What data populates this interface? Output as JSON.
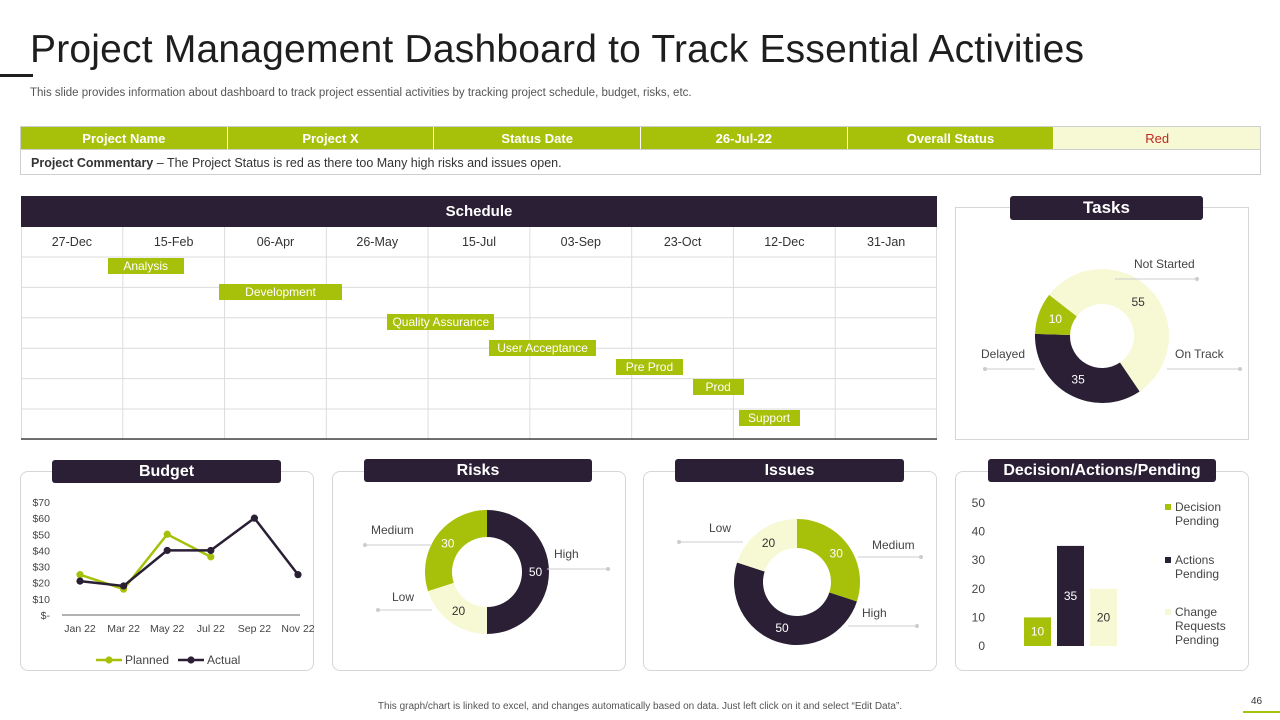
{
  "page": {
    "title": "Project Management Dashboard to Track Essential Activities",
    "subtitle": "This slide provides information about dashboard to track project essential activities by tracking project schedule, budget, risks, etc.",
    "footer": "This graph/chart is linked to excel, and changes automatically based on data. Just left click on it and select “Edit Data”.",
    "page_number": "46"
  },
  "colors": {
    "green": "#a7c00a",
    "dark": "#2a1f35",
    "pale": "#f6f9d4",
    "red": "#c0281e"
  },
  "status": {
    "cells": [
      "Project Name",
      "Project X",
      "Status Date",
      "26-Jul-22",
      "Overall Status",
      "Red"
    ],
    "commentary_label": "Project Commentary",
    "commentary_text": " – The Project Status is red as there too Many high risks and issues open."
  },
  "schedule": {
    "title": "Schedule",
    "dates": [
      "27-Dec",
      "15-Feb",
      "06-Apr",
      "26-May",
      "15-Jul",
      "03-Sep",
      "23-Oct",
      "12-Dec",
      "31-Jan"
    ],
    "tasks": [
      {
        "name": "Analysis",
        "start": 0.85,
        "end": 1.6,
        "row": 0
      },
      {
        "name": "Development",
        "start": 1.95,
        "end": 3.15,
        "row": 1
      },
      {
        "name": "Quality Assurance",
        "start": 3.6,
        "end": 4.65,
        "row": 2
      },
      {
        "name": "User Acceptance",
        "start": 4.6,
        "end": 5.65,
        "row": 3
      },
      {
        "name": "Pre Prod",
        "start": 5.85,
        "end": 6.5,
        "row": 4
      },
      {
        "name": "Prod",
        "start": 6.6,
        "end": 7.1,
        "row": 5
      },
      {
        "name": "Support",
        "start": 7.05,
        "end": 7.65,
        "row": 6
      }
    ]
  },
  "chart_data": [
    {
      "id": "tasks",
      "type": "pie",
      "title": "Tasks",
      "labels": [
        "Not Started",
        "On Track",
        "Delayed"
      ],
      "values": [
        55,
        35,
        10
      ],
      "colors": [
        "#f6f9d4",
        "#2a1f35",
        "#a7c00a"
      ]
    },
    {
      "id": "budget",
      "type": "line",
      "title": "Budget",
      "categories": [
        "Jan 22",
        "Mar 22",
        "May 22",
        "Jul 22",
        "Sep 22",
        "Nov 22"
      ],
      "ytick_labels": [
        "$-",
        "$10",
        "$20",
        "$30",
        "$40",
        "$50",
        "$60",
        "$70"
      ],
      "ylim": [
        0,
        70
      ],
      "series": [
        {
          "name": "Planned",
          "x": [
            0,
            1,
            2,
            3
          ],
          "values": [
            25,
            16,
            50,
            36
          ],
          "color": "#a7c00a"
        },
        {
          "name": "Actual",
          "x": [
            0,
            1,
            2,
            3,
            4,
            5
          ],
          "values": [
            21,
            18,
            40,
            40,
            60,
            25
          ],
          "color": "#2a1f35"
        }
      ]
    },
    {
      "id": "risks",
      "type": "pie",
      "title": "Risks",
      "labels": [
        "High",
        "Low",
        "Medium"
      ],
      "values": [
        50,
        20,
        30
      ],
      "colors": [
        "#2a1f35",
        "#f6f9d4",
        "#a7c00a"
      ]
    },
    {
      "id": "issues",
      "type": "pie",
      "title": "Issues",
      "labels": [
        "Medium",
        "High",
        "Low"
      ],
      "values": [
        30,
        50,
        20
      ],
      "colors": [
        "#a7c00a",
        "#2a1f35",
        "#f6f9d4"
      ]
    },
    {
      "id": "decisions",
      "type": "bar",
      "title": "Decision/Actions/Pending",
      "categories": [
        "Decision Pending",
        "Actions Pending",
        "Change Requests Pending"
      ],
      "values": [
        10,
        35,
        20
      ],
      "colors": [
        "#a7c00a",
        "#2a1f35",
        "#f6f9d4"
      ],
      "ylim": [
        0,
        50
      ],
      "yticks": [
        "0",
        "10",
        "20",
        "30",
        "40",
        "50"
      ]
    }
  ]
}
